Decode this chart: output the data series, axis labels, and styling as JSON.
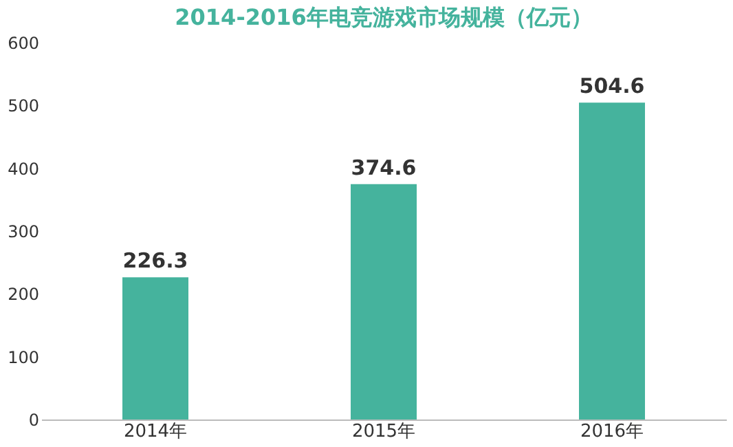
{
  "chart_data": {
    "type": "bar",
    "title": "2014-2016年电竞游戏市场规模（亿元）",
    "categories": [
      "2014年",
      "2015年",
      "2016年"
    ],
    "series": [
      {
        "color": "#45b39d",
        "values": [
          226.3,
          374.6,
          504.6
        ]
      }
    ],
    "ylim": [
      0,
      600
    ],
    "yticks": [
      0,
      100,
      200,
      300,
      400,
      500,
      600
    ],
    "data_labels": true,
    "grid": false
  }
}
